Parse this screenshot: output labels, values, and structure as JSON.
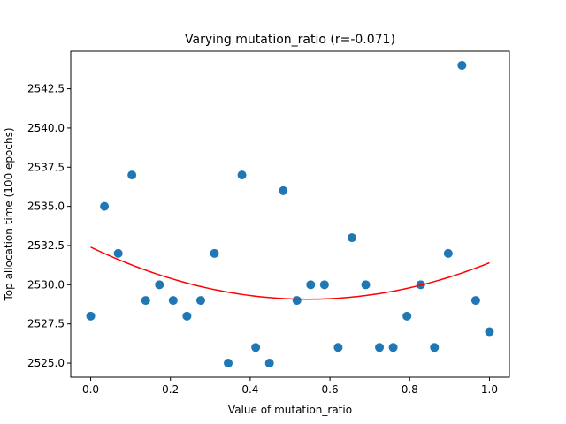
{
  "chart_data": {
    "type": "scatter",
    "title": "Varying mutation_ratio (r=-0.071)",
    "xlabel": "Value of mutation_ratio",
    "ylabel": "Top allocation time (100 epochs)",
    "xlim": [
      -0.05,
      1.05
    ],
    "ylim": [
      2524.1,
      2544.9
    ],
    "x_ticks": [
      0.0,
      0.2,
      0.4,
      0.6,
      0.8,
      1.0
    ],
    "x_tick_labels": [
      "0.0",
      "0.2",
      "0.4",
      "0.6",
      "0.8",
      "1.0"
    ],
    "y_ticks": [
      2525.0,
      2527.5,
      2530.0,
      2532.5,
      2535.0,
      2537.5,
      2540.0,
      2542.5
    ],
    "y_tick_labels": [
      "2525.0",
      "2527.5",
      "2530.0",
      "2532.5",
      "2535.0",
      "2537.5",
      "2540.0",
      "2542.5"
    ],
    "grid": false,
    "colors": {
      "points": "#1f77b4",
      "fit": "#ff0000"
    },
    "series": [
      {
        "type": "scatter",
        "x": [
          0.0,
          0.0345,
          0.069,
          0.1034,
          0.1379,
          0.1724,
          0.2069,
          0.2414,
          0.2759,
          0.3103,
          0.3448,
          0.3793,
          0.4138,
          0.4483,
          0.4828,
          0.5172,
          0.5517,
          0.5862,
          0.6207,
          0.6552,
          0.6897,
          0.7241,
          0.7586,
          0.7931,
          0.8276,
          0.8621,
          0.8966,
          0.931,
          0.9655,
          1.0
        ],
        "y": [
          2528,
          2535,
          2532,
          2537,
          2529,
          2530,
          2529,
          2528,
          2529,
          2532,
          2525,
          2537,
          2526,
          2525,
          2536,
          2529,
          2530,
          2530,
          2526,
          2533,
          2530,
          2526,
          2526,
          2528,
          2530,
          2526,
          2532,
          2544,
          2529,
          2527
        ]
      },
      {
        "type": "line",
        "fit": "quadratic",
        "coefficients": [
          2532.4,
          -12.2,
          11.2
        ]
      }
    ]
  }
}
